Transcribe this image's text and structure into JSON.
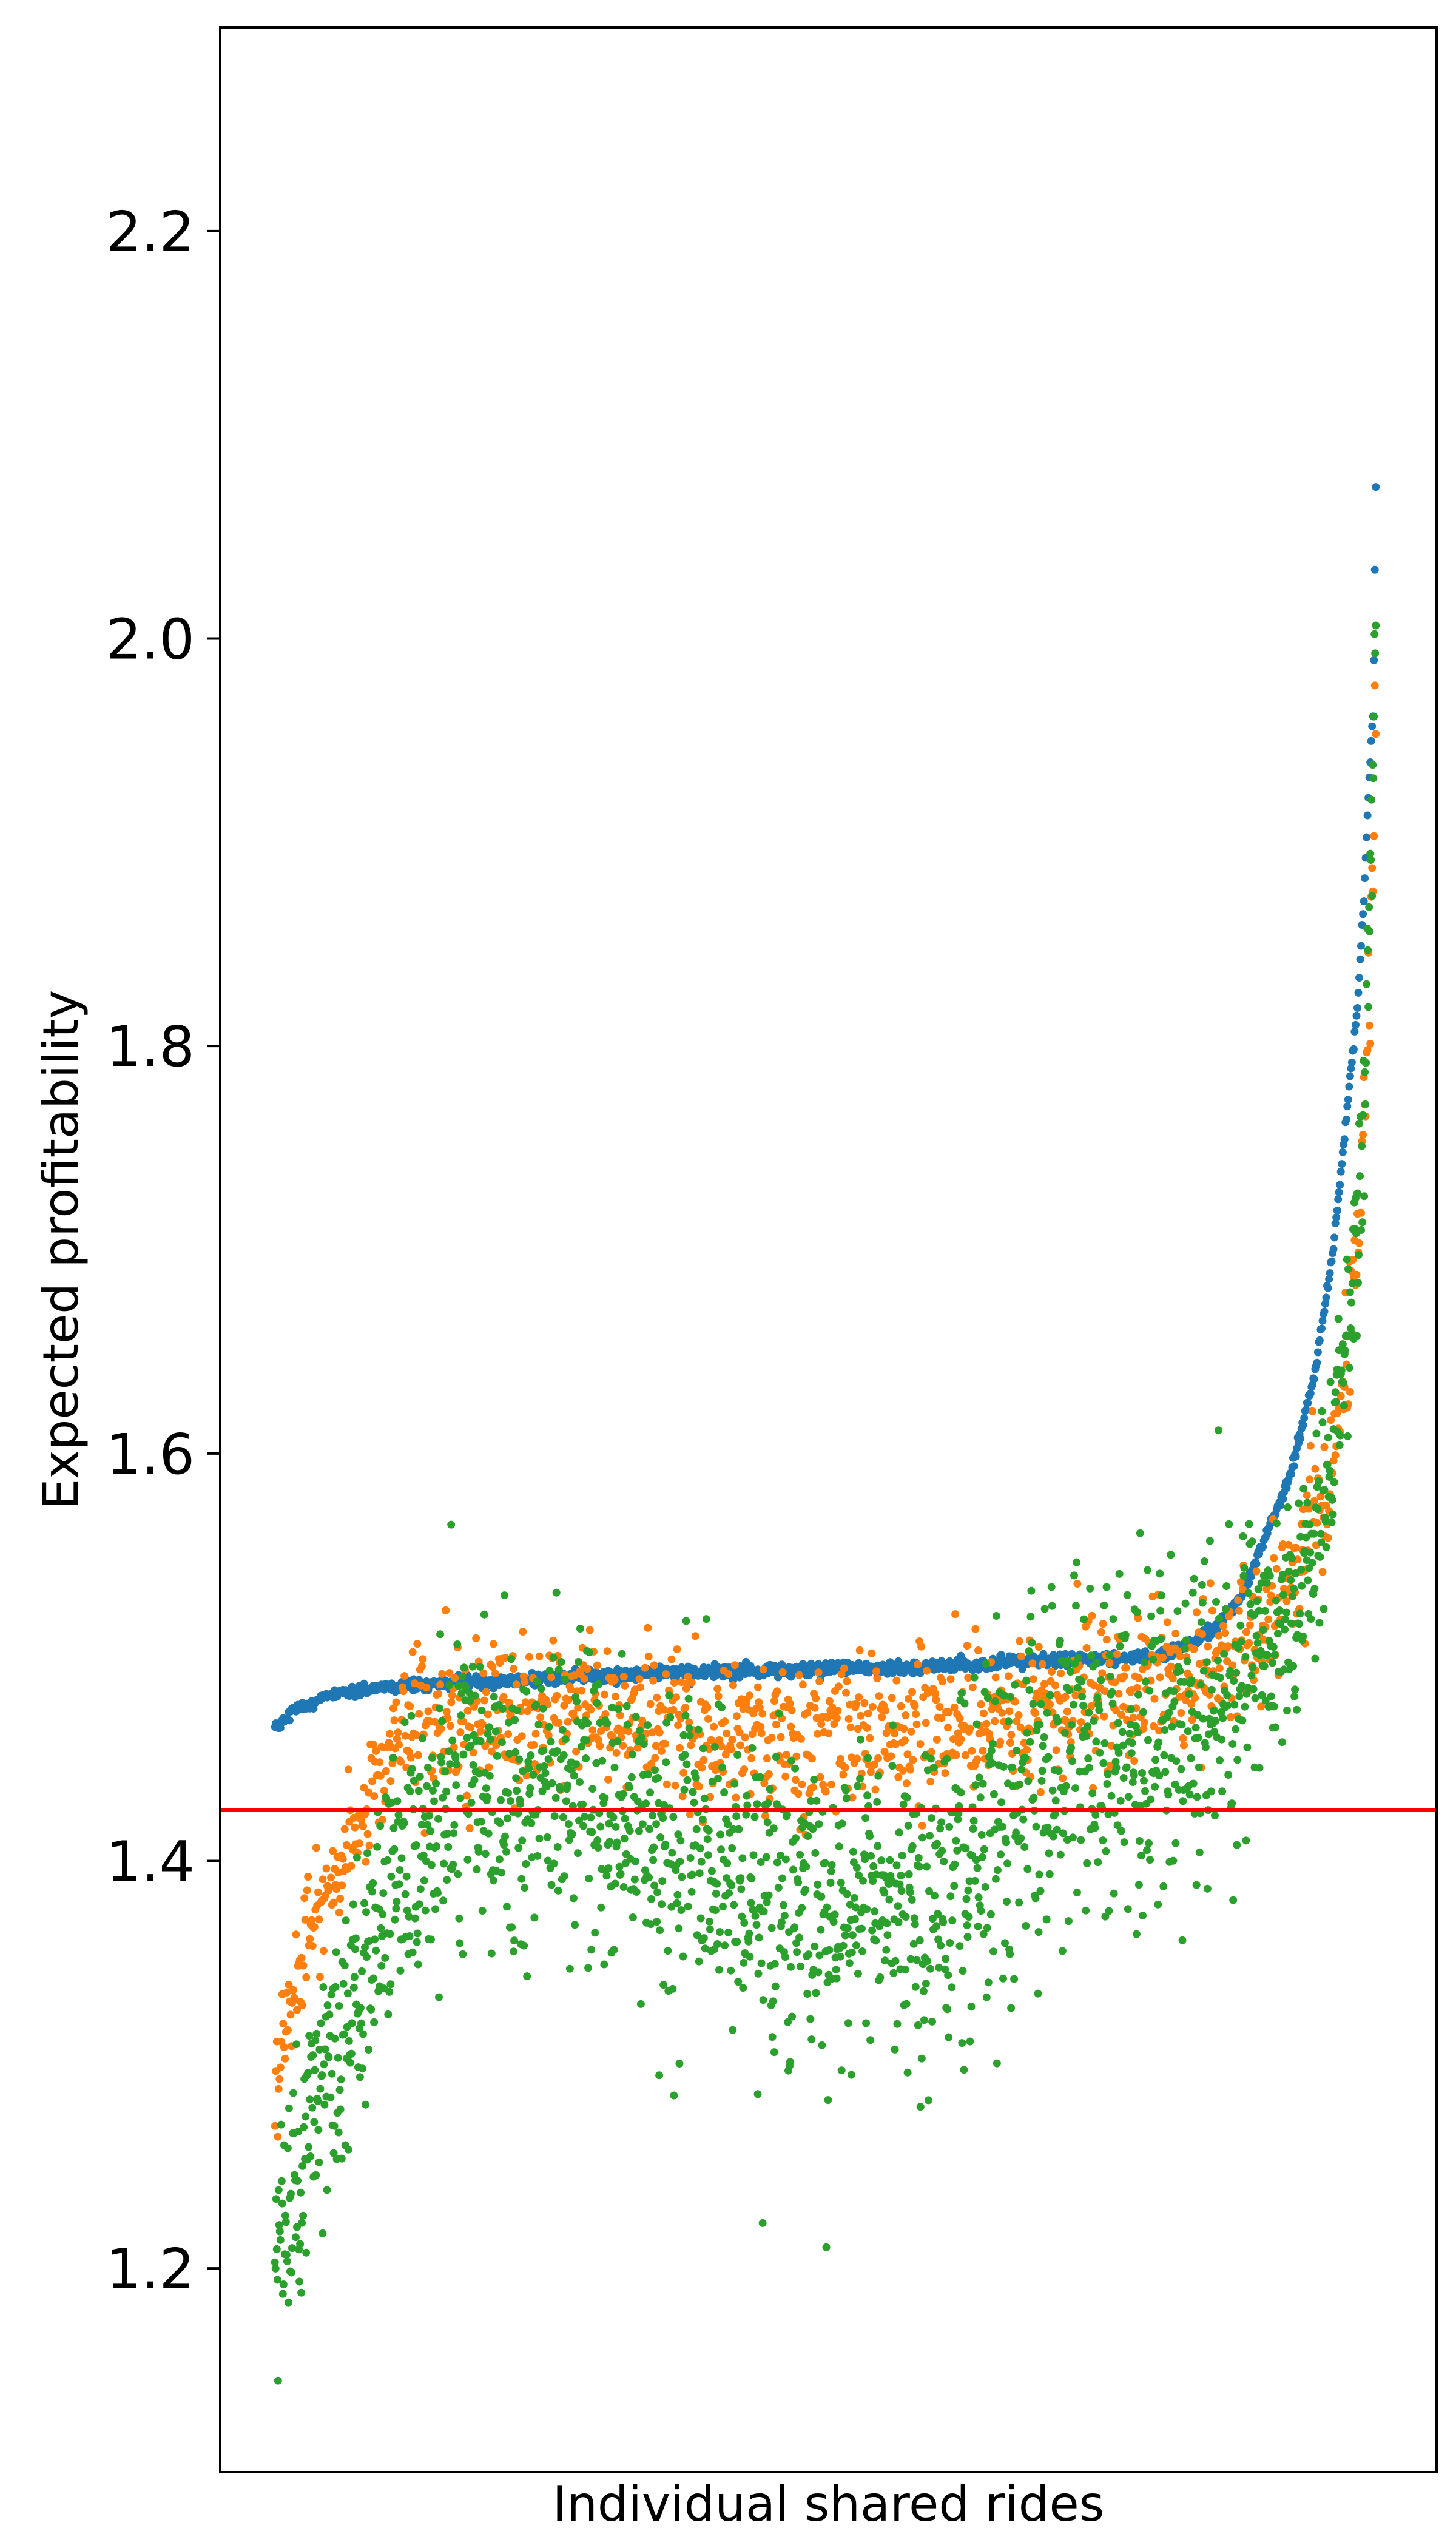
{
  "chart_data": {
    "type": "scatter",
    "title": "",
    "xlabel": "Individual shared rides",
    "ylabel": "Expected profitability",
    "xlim": [
      0,
      1
    ],
    "ylim": [
      1.1,
      2.3
    ],
    "x_ticks_shown": false,
    "y_ticks": [
      1.2,
      1.4,
      1.6,
      1.8,
      2.0,
      2.2
    ],
    "y_tick_labels": [
      "1.2",
      "1.4",
      "1.6",
      "1.8",
      "2.0",
      "2.2"
    ],
    "grid": false,
    "legend": "none",
    "reference_line": {
      "y": 1.425,
      "color": "#ff0000",
      "orientation": "horizontal"
    },
    "series": [
      {
        "color": "#1f77b4",
        "approx_points": 1200,
        "description_points": [
          [
            0.045,
            1.465
          ],
          [
            0.06,
            1.474
          ],
          [
            0.09,
            1.481
          ],
          [
            0.15,
            1.486
          ],
          [
            0.25,
            1.489
          ],
          [
            0.35,
            1.492
          ],
          [
            0.5,
            1.494
          ],
          [
            0.62,
            1.496
          ],
          [
            0.68,
            1.499
          ],
          [
            0.77,
            1.5
          ],
          [
            0.8,
            1.507
          ],
          [
            0.82,
            1.515
          ],
          [
            0.84,
            1.53
          ],
          [
            0.86,
            1.56
          ],
          [
            0.88,
            1.59
          ],
          [
            0.9,
            1.64
          ],
          [
            0.915,
            1.7
          ],
          [
            0.925,
            1.76
          ],
          [
            0.935,
            1.82
          ],
          [
            0.94,
            1.87
          ],
          [
            0.945,
            1.935
          ],
          [
            0.948,
            1.965
          ],
          [
            0.95,
            2.07
          ]
        ]
      },
      {
        "color": "#ff7f0e",
        "approx_points": 1200,
        "description_points": [
          [
            0.045,
            1.28
          ],
          [
            0.05,
            1.31
          ],
          [
            0.06,
            1.34
          ],
          [
            0.08,
            1.37
          ],
          [
            0.1,
            1.4
          ],
          [
            0.13,
            1.44
          ],
          [
            0.15,
            1.465
          ],
          [
            0.3,
            1.474
          ],
          [
            0.45,
            1.462
          ],
          [
            0.6,
            1.47
          ],
          [
            0.7,
            1.48
          ],
          [
            0.8,
            1.49
          ],
          [
            0.85,
            1.51
          ],
          [
            0.88,
            1.54
          ],
          [
            0.91,
            1.58
          ],
          [
            0.93,
            1.66
          ],
          [
            0.94,
            1.75
          ],
          [
            0.945,
            1.84
          ],
          [
            0.948,
            1.9
          ],
          [
            0.95,
            1.975
          ]
        ]
      },
      {
        "color": "#2ca02c",
        "approx_points": 1800,
        "description_points": [
          [
            0.045,
            1.185
          ],
          [
            0.05,
            1.21
          ],
          [
            0.06,
            1.24
          ],
          [
            0.08,
            1.28
          ],
          [
            0.1,
            1.32
          ],
          [
            0.15,
            1.4
          ],
          [
            0.2,
            1.44
          ],
          [
            0.3,
            1.43
          ],
          [
            0.4,
            1.4
          ],
          [
            0.5,
            1.37
          ],
          [
            0.6,
            1.4
          ],
          [
            0.7,
            1.45
          ],
          [
            0.8,
            1.47
          ],
          [
            0.85,
            1.49
          ],
          [
            0.88,
            1.52
          ],
          [
            0.91,
            1.58
          ],
          [
            0.93,
            1.67
          ],
          [
            0.94,
            1.77
          ],
          [
            0.945,
            1.86
          ],
          [
            0.95,
            2.01
          ]
        ]
      }
    ]
  }
}
